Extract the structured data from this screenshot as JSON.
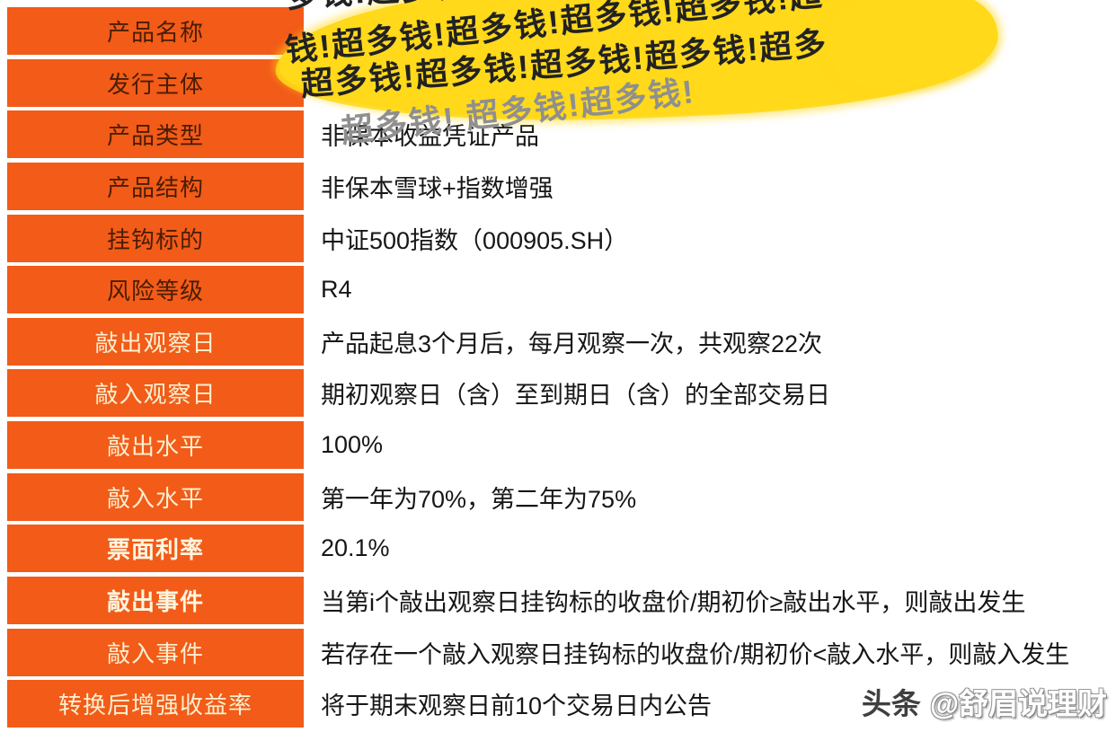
{
  "table": {
    "rows": [
      {
        "label": "产品名称",
        "value": ""
      },
      {
        "label": "发行主体",
        "value": ""
      },
      {
        "label": "产品类型",
        "value": "非保本收益凭证产品"
      },
      {
        "label": "产品结构",
        "value": "非保本雪球+指数增强"
      },
      {
        "label": "挂钩标的",
        "value": "中证500指数（000905.SH）"
      },
      {
        "label": "风险等级",
        "value": "R4"
      },
      {
        "label": "敲出观察日",
        "value": "产品起息3个月后，每月观察一次，共观察22次"
      },
      {
        "label": "敲入观察日",
        "value": "期初观察日（含）至到期日（含）的全部交易日"
      },
      {
        "label": "敲出水平",
        "value": "100%"
      },
      {
        "label": "敲入水平",
        "value": "第一年为70%，第二年为75%"
      },
      {
        "label": "票面利率",
        "value": "20.1%"
      },
      {
        "label": "敲出事件",
        "value": "当第i个敲出观察日挂钩标的收盘价/期初价≥敲出水平，则敲出发生"
      },
      {
        "label": "敲入事件",
        "value": "若存在一个敲入观察日挂钩标的收盘价/期初价<敲入水平，则敲入发生"
      },
      {
        "label": "转换后增强收益率",
        "value": "将于期末观察日前10个交易日内公告"
      }
    ]
  },
  "scribble": {
    "lines": [
      "多钱!超多钱!超多钱!超多钱!超多",
      "钱!超多钱!超多钱!超多钱!超多钱!超",
      "超多钱!超多钱!超多钱!超多钱!超多",
      "超多钱!  超多钱!超多钱!"
    ]
  },
  "watermark": {
    "brand": "头条",
    "handle": "@舒眉说理财"
  },
  "colors": {
    "orange": "#F25B18",
    "label_dark": "#4A1D04",
    "label_light": "#FBEFD0",
    "value_text": "#161616",
    "scribble_yellow": "#FFD91A",
    "scribble_text": "#222222",
    "watermark_gray": "#9a9a9a"
  }
}
